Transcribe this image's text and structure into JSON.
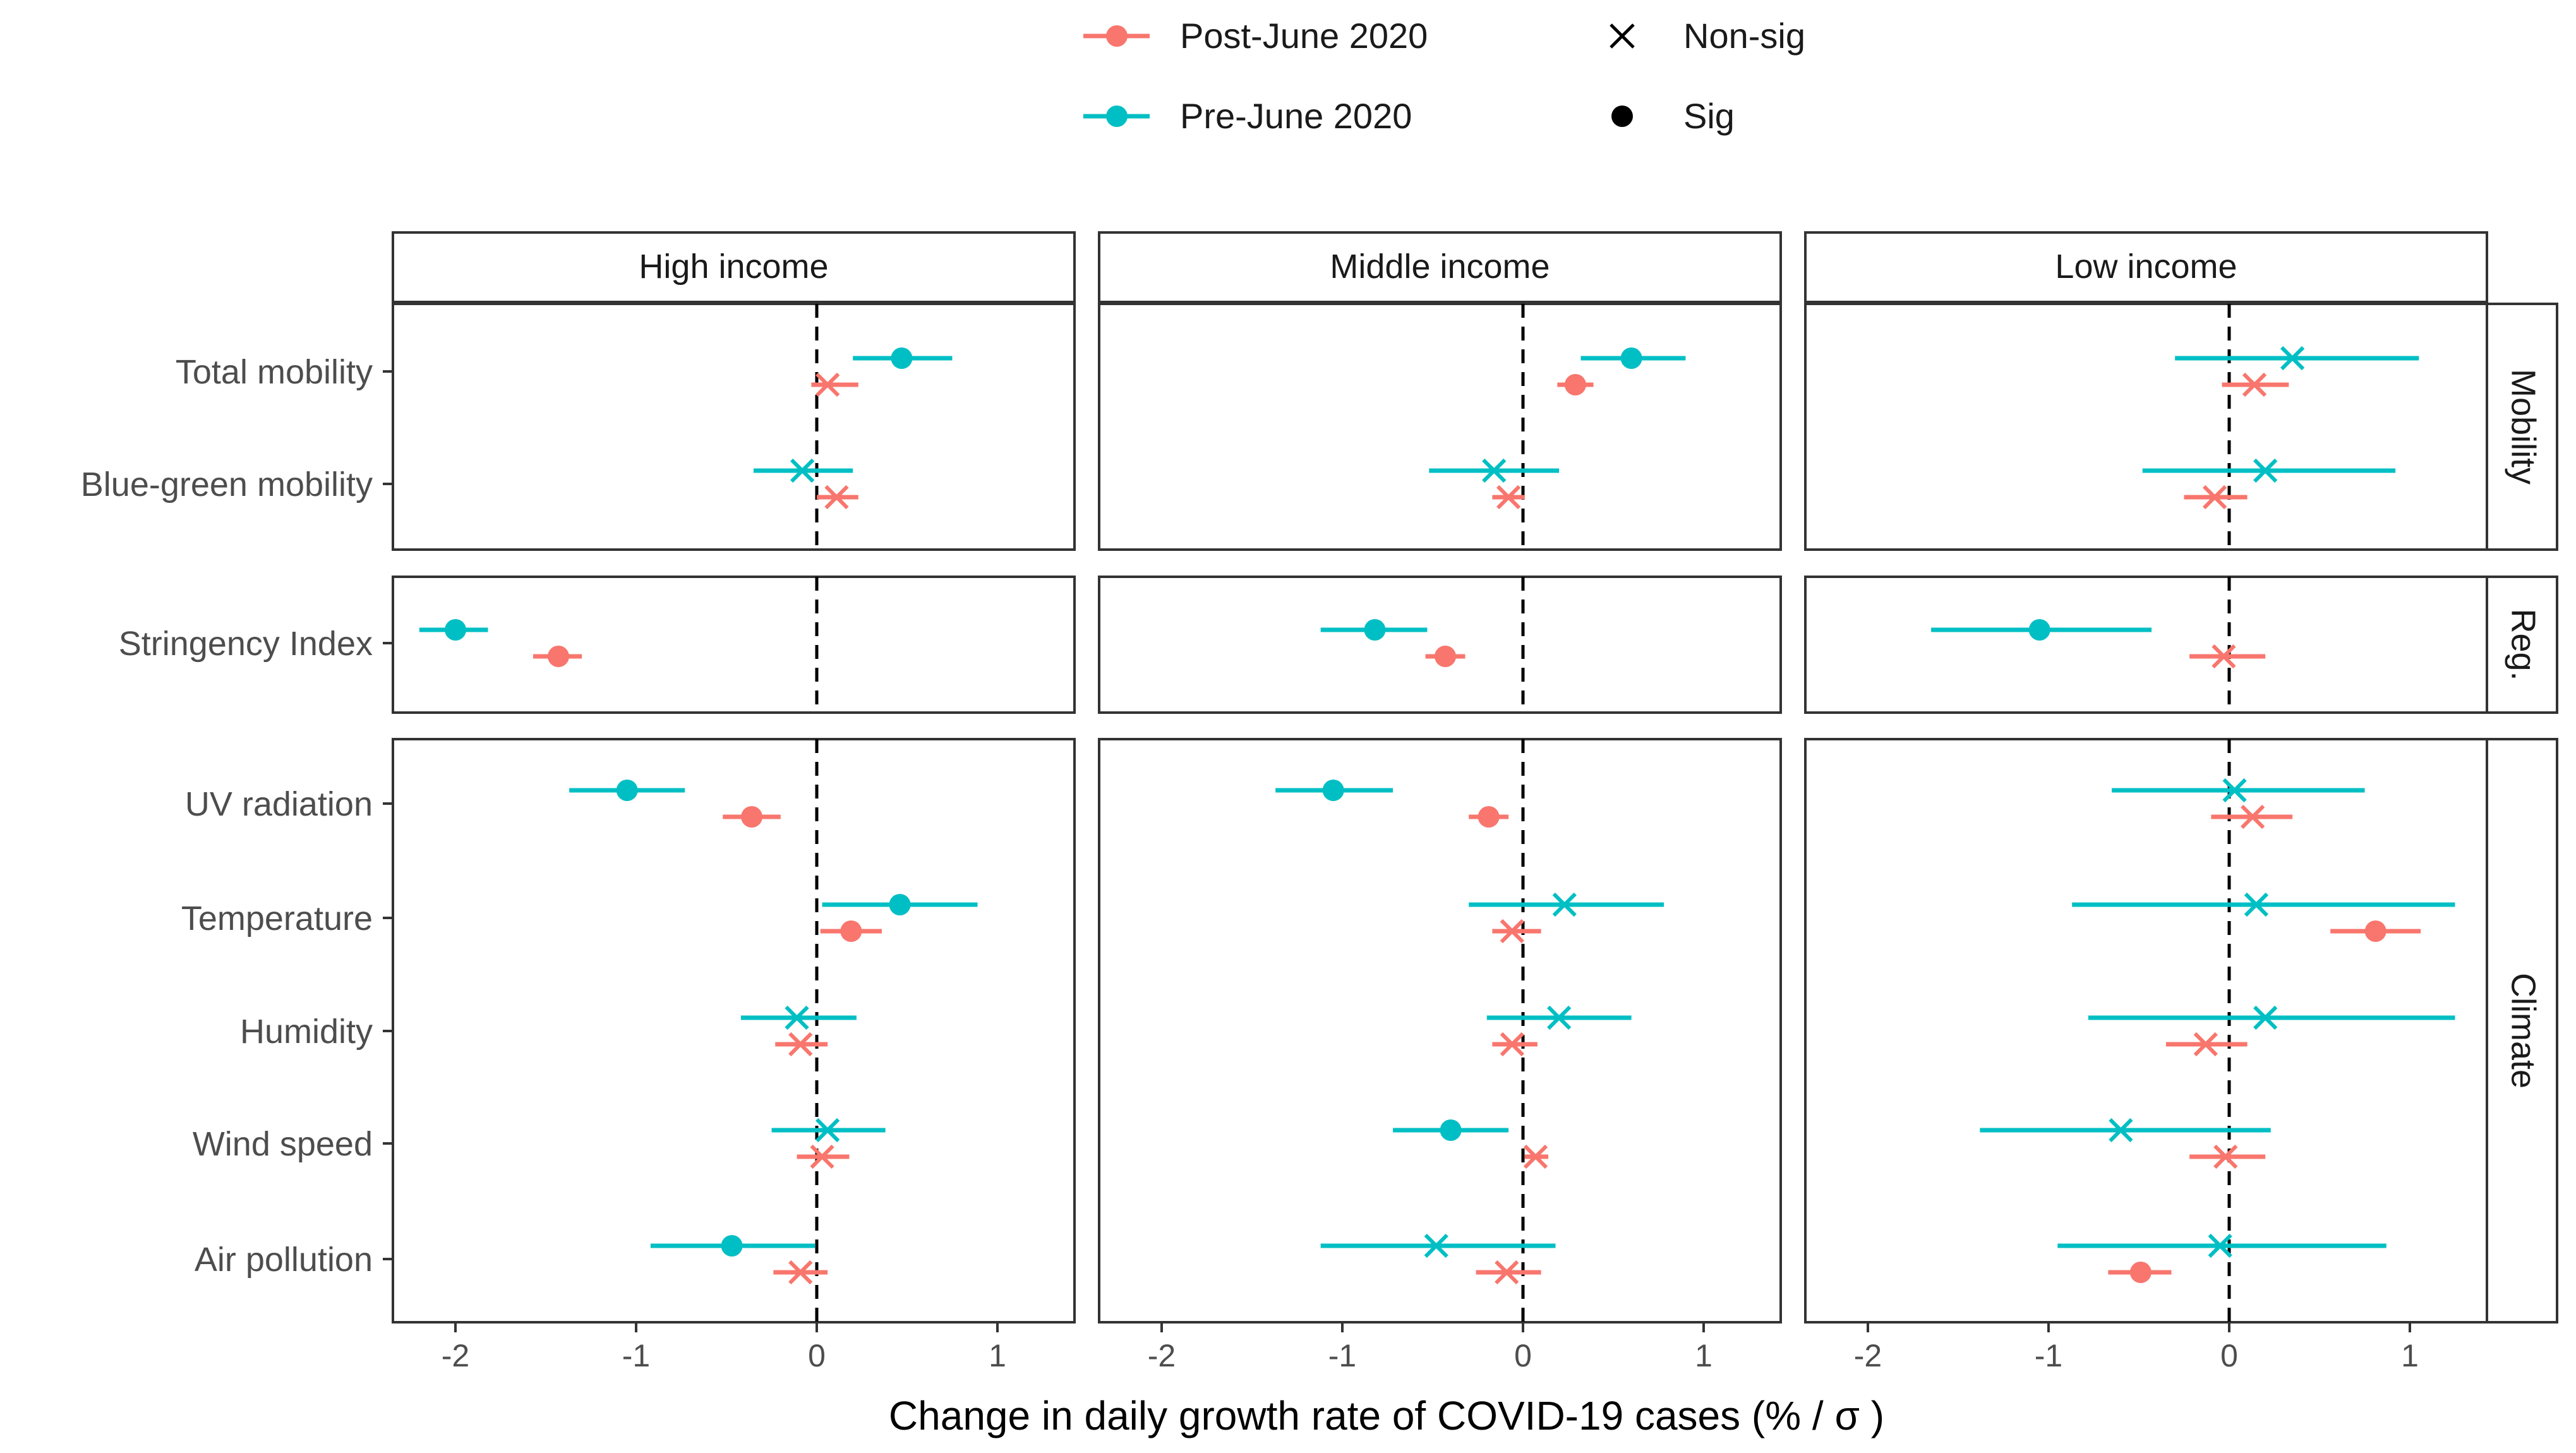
{
  "chart_data": {
    "type": "scatter",
    "subtype": "forest-plot-with-confidence-intervals",
    "xlabel": "Change in daily growth rate of COVID-19 cases (% / σ )",
    "xticks": [
      "-2",
      "-1",
      "0",
      "1"
    ],
    "xlim": [
      -2.4,
      1.4
    ],
    "reference_line_x": 0,
    "legend": {
      "placement": "top-center",
      "color_entries": [
        {
          "key": "post",
          "label": "Post-June 2020",
          "color": "#F8766D"
        },
        {
          "key": "pre",
          "label": "Pre-June 2020",
          "color": "#00BFC4"
        }
      ],
      "shape_entries": [
        {
          "key": "nonsig",
          "label": "Non-sig",
          "marker": "cross"
        },
        {
          "key": "sig",
          "label": "Sig",
          "marker": "circle"
        }
      ]
    },
    "income_panels": [
      {
        "key": "high",
        "label": "High income"
      },
      {
        "key": "middle",
        "label": "Middle income"
      },
      {
        "key": "low",
        "label": "Low income"
      }
    ],
    "groups": [
      {
        "key": "mobility",
        "label": "Mobility",
        "variables": [
          "Total mobility",
          "Blue-green mobility"
        ]
      },
      {
        "key": "reg",
        "label": "Reg.",
        "variables": [
          "Stringency Index"
        ]
      },
      {
        "key": "climate",
        "label": "Climate",
        "variables": [
          "UV radiation",
          "Temperature",
          "Humidity",
          "Wind speed",
          "Air pollution"
        ]
      }
    ],
    "series": [
      {
        "name": "Pre-June 2020",
        "color": "#00BFC4",
        "estimates": {
          "high": {
            "Total mobility": {
              "est": 0.47,
              "lo": 0.2,
              "hi": 0.75,
              "sig": true
            },
            "Blue-green mobility": {
              "est": -0.08,
              "lo": -0.35,
              "hi": 0.2,
              "sig": false
            },
            "Stringency Index": {
              "est": -2.0,
              "lo": -2.2,
              "hi": -1.82,
              "sig": true
            },
            "UV radiation": {
              "est": -1.05,
              "lo": -1.37,
              "hi": -0.73,
              "sig": true
            },
            "Temperature": {
              "est": 0.46,
              "lo": 0.03,
              "hi": 0.89,
              "sig": true
            },
            "Humidity": {
              "est": -0.11,
              "lo": -0.42,
              "hi": 0.22,
              "sig": false
            },
            "Wind speed": {
              "est": 0.06,
              "lo": -0.25,
              "hi": 0.38,
              "sig": false
            },
            "Air pollution": {
              "est": -0.47,
              "lo": -0.92,
              "hi": -0.01,
              "sig": true
            }
          },
          "middle": {
            "Total mobility": {
              "est": 0.6,
              "lo": 0.32,
              "hi": 0.9,
              "sig": true
            },
            "Blue-green mobility": {
              "est": -0.16,
              "lo": -0.52,
              "hi": 0.2,
              "sig": false
            },
            "Stringency Index": {
              "est": -0.82,
              "lo": -1.12,
              "hi": -0.53,
              "sig": true
            },
            "UV radiation": {
              "est": -1.05,
              "lo": -1.37,
              "hi": -0.72,
              "sig": true
            },
            "Temperature": {
              "est": 0.23,
              "lo": -0.3,
              "hi": 0.78,
              "sig": false
            },
            "Humidity": {
              "est": 0.2,
              "lo": -0.2,
              "hi": 0.6,
              "sig": false
            },
            "Wind speed": {
              "est": -0.4,
              "lo": -0.72,
              "hi": -0.08,
              "sig": true
            },
            "Air pollution": {
              "est": -0.48,
              "lo": -1.12,
              "hi": 0.18,
              "sig": false
            }
          },
          "low": {
            "Total mobility": {
              "est": 0.35,
              "lo": -0.3,
              "hi": 1.05,
              "sig": false
            },
            "Blue-green mobility": {
              "est": 0.2,
              "lo": -0.48,
              "hi": 0.92,
              "sig": false
            },
            "Stringency Index": {
              "est": -1.05,
              "lo": -1.65,
              "hi": -0.43,
              "sig": true
            },
            "UV radiation": {
              "est": 0.03,
              "lo": -0.65,
              "hi": 0.75,
              "sig": false
            },
            "Temperature": {
              "est": 0.15,
              "lo": -0.87,
              "hi": 1.25,
              "sig": false
            },
            "Humidity": {
              "est": 0.2,
              "lo": -0.78,
              "hi": 1.25,
              "sig": false
            },
            "Wind speed": {
              "est": -0.6,
              "lo": -1.38,
              "hi": 0.23,
              "sig": false
            },
            "Air pollution": {
              "est": -0.05,
              "lo": -0.95,
              "hi": 0.87,
              "sig": false
            }
          }
        }
      },
      {
        "name": "Post-June 2020",
        "color": "#F8766D",
        "estimates": {
          "high": {
            "Total mobility": {
              "est": 0.06,
              "lo": -0.03,
              "hi": 0.23,
              "sig": false
            },
            "Blue-green mobility": {
              "est": 0.11,
              "lo": 0.0,
              "hi": 0.23,
              "sig": false
            },
            "Stringency Index": {
              "est": -1.43,
              "lo": -1.57,
              "hi": -1.3,
              "sig": true
            },
            "UV radiation": {
              "est": -0.36,
              "lo": -0.52,
              "hi": -0.2,
              "sig": true
            },
            "Temperature": {
              "est": 0.19,
              "lo": 0.02,
              "hi": 0.36,
              "sig": true
            },
            "Humidity": {
              "est": -0.09,
              "lo": -0.23,
              "hi": 0.06,
              "sig": false
            },
            "Wind speed": {
              "est": 0.03,
              "lo": -0.11,
              "hi": 0.18,
              "sig": false
            },
            "Air pollution": {
              "est": -0.09,
              "lo": -0.24,
              "hi": 0.06,
              "sig": false
            }
          },
          "middle": {
            "Total mobility": {
              "est": 0.29,
              "lo": 0.19,
              "hi": 0.39,
              "sig": true
            },
            "Blue-green mobility": {
              "est": -0.08,
              "lo": -0.17,
              "hi": 0.01,
              "sig": false
            },
            "Stringency Index": {
              "est": -0.43,
              "lo": -0.54,
              "hi": -0.32,
              "sig": true
            },
            "UV radiation": {
              "est": -0.19,
              "lo": -0.3,
              "hi": -0.08,
              "sig": true
            },
            "Temperature": {
              "est": -0.06,
              "lo": -0.17,
              "hi": 0.1,
              "sig": false
            },
            "Humidity": {
              "est": -0.06,
              "lo": -0.17,
              "hi": 0.08,
              "sig": false
            },
            "Wind speed": {
              "est": 0.07,
              "lo": 0.01,
              "hi": 0.14,
              "sig": false
            },
            "Air pollution": {
              "est": -0.09,
              "lo": -0.26,
              "hi": 0.1,
              "sig": false
            }
          },
          "low": {
            "Total mobility": {
              "est": 0.14,
              "lo": -0.04,
              "hi": 0.33,
              "sig": false
            },
            "Blue-green mobility": {
              "est": -0.08,
              "lo": -0.25,
              "hi": 0.1,
              "sig": false
            },
            "Stringency Index": {
              "est": -0.03,
              "lo": -0.22,
              "hi": 0.2,
              "sig": false
            },
            "UV radiation": {
              "est": 0.13,
              "lo": -0.1,
              "hi": 0.35,
              "sig": false
            },
            "Temperature": {
              "est": 0.81,
              "lo": 0.56,
              "hi": 1.06,
              "sig": true
            },
            "Humidity": {
              "est": -0.13,
              "lo": -0.35,
              "hi": 0.1,
              "sig": false
            },
            "Wind speed": {
              "est": -0.02,
              "lo": -0.22,
              "hi": 0.2,
              "sig": false
            },
            "Air pollution": {
              "est": -0.49,
              "lo": -0.67,
              "hi": -0.32,
              "sig": true
            }
          }
        }
      }
    ]
  }
}
